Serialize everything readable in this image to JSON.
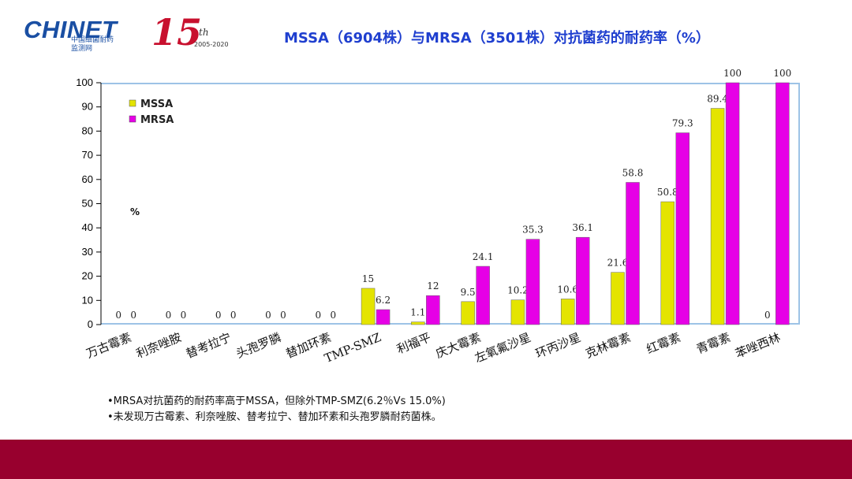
{
  "header": {
    "logo_text": "CHINET",
    "logo_subtitle_1": "中国细菌耐药",
    "logo_subtitle_2": "监测网",
    "anniversary_number": "15",
    "anniversary_suffix": "th",
    "anniversary_years": "2005-2020",
    "title": "MSSA（6904株）与MRSA（3501株）对抗菌药的耐药率（%）"
  },
  "colors": {
    "mssa": "#e4e400",
    "mrsa": "#e600e6",
    "axis": "#9dc3e6",
    "footer": "#98002e",
    "title": "#1f3fcf"
  },
  "chart_data": {
    "type": "bar",
    "title": "MSSA（6904株）与MRSA（3501株）对抗菌药的耐药率（%）",
    "ylabel": "%",
    "xlabel": "",
    "ylim": [
      0,
      100
    ],
    "yticks": [
      0,
      10,
      20,
      30,
      40,
      50,
      60,
      70,
      80,
      90,
      100
    ],
    "grid": false,
    "legend_position": "top-left",
    "categories": [
      "万古霉素",
      "利奈唑胺",
      "替考拉宁",
      "头孢罗膦",
      "替加环素",
      "TMP-SMZ",
      "利福平",
      "庆大霉素",
      "左氧氟沙星",
      "环丙沙星",
      "克林霉素",
      "红霉素",
      "青霉素",
      "苯唑西林"
    ],
    "series": [
      {
        "name": "MSSA",
        "values": [
          0,
          0,
          0,
          0,
          0,
          15,
          1.1,
          9.5,
          10.2,
          10.6,
          21.6,
          50.8,
          89.4,
          0
        ],
        "labels": [
          "0",
          "0",
          "0",
          "0",
          "0",
          "15",
          "1.1",
          "9.5",
          "10.2",
          "10.6",
          "21.6",
          "50.8",
          "89.4",
          "0"
        ]
      },
      {
        "name": "MRSA",
        "values": [
          0,
          0,
          0,
          0,
          0,
          6.2,
          12,
          24.1,
          35.3,
          36.1,
          58.8,
          79.3,
          100,
          100
        ],
        "labels": [
          "0",
          "0",
          "0",
          "0",
          "0",
          "6.2",
          "12",
          "24.1",
          "35.3",
          "36.1",
          "58.8",
          "79.3",
          "100",
          "100"
        ]
      }
    ]
  },
  "notes": [
    "•MRSA对抗菌药的耐药率高于MSSA，但除外TMP-SMZ(6.2％Vs 15.0%)",
    "•未发现万古霉素、利奈唑胺、替考拉宁、替加环素和头孢罗膦耐药菌株。"
  ]
}
